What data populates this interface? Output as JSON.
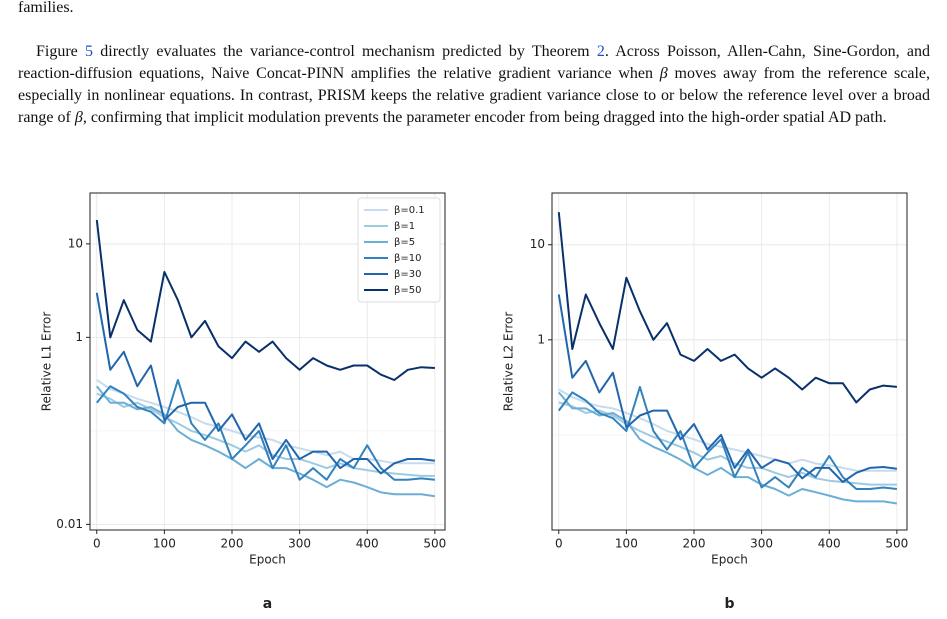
{
  "previous_text": "families.",
  "paragraph": [
    "Figure ",
    "5",
    " directly evaluates the variance-control mechanism predicted by Theorem ",
    "2",
    ". Across Poisson, Allen-Cahn, Sine-Gordon, and reaction-diffusion equations, Naive Concat-PINN amplifies the relative gradient variance when ",
    "β",
    " moves away from the reference scale, especially in nonlinear equations. In contrast, PRISM keeps the relative gradient variance close to or below the reference level over a broad range of ",
    "β",
    ", confirming that implicit modulation prevents the parameter encoder from being dragged into the high-order spatial AD path."
  ],
  "chart_data": [
    {
      "type": "line",
      "panel_label": "a",
      "xlabel": "Epoch",
      "ylabel": "Relative L1 Error",
      "log_y": true,
      "grid": true,
      "legend": "upper right",
      "xlim": [
        -10,
        515
      ],
      "xticks": [
        0,
        100,
        200,
        300,
        400,
        500
      ],
      "ylim": [
        0.0087,
        35
      ],
      "yticks": [
        0.01,
        1,
        10
      ],
      "x": [
        0,
        20,
        40,
        60,
        80,
        100,
        120,
        140,
        160,
        180,
        200,
        220,
        240,
        260,
        280,
        300,
        320,
        340,
        360,
        380,
        400,
        420,
        440,
        460,
        480,
        500
      ],
      "series": [
        {
          "name": "β=0.1",
          "color": "#c6dbef",
          "values": [
            0.35,
            0.28,
            0.25,
            0.22,
            0.2,
            0.18,
            0.16,
            0.14,
            0.12,
            0.11,
            0.1,
            0.09,
            0.085,
            0.08,
            0.07,
            0.065,
            0.06,
            0.055,
            0.06,
            0.05,
            0.05,
            0.048,
            0.045,
            0.045,
            0.045,
            0.045
          ]
        },
        {
          "name": "β=1",
          "color": "#9ecae1",
          "values": [
            0.25,
            0.22,
            0.18,
            0.2,
            0.17,
            0.14,
            0.12,
            0.1,
            0.09,
            0.08,
            0.07,
            0.06,
            0.07,
            0.055,
            0.05,
            0.05,
            0.045,
            0.04,
            0.045,
            0.04,
            0.038,
            0.036,
            0.035,
            0.034,
            0.033,
            0.033
          ]
        },
        {
          "name": "β=5",
          "color": "#6baed6",
          "values": [
            0.3,
            0.2,
            0.2,
            0.17,
            0.18,
            0.15,
            0.1,
            0.08,
            0.07,
            0.06,
            0.05,
            0.04,
            0.05,
            0.04,
            0.04,
            0.035,
            0.03,
            0.025,
            0.03,
            0.028,
            0.025,
            0.022,
            0.021,
            0.021,
            0.021,
            0.02
          ]
        },
        {
          "name": "β=10",
          "color": "#3182bd",
          "values": [
            0.2,
            0.3,
            0.25,
            0.18,
            0.16,
            0.12,
            0.35,
            0.12,
            0.08,
            0.12,
            0.05,
            0.07,
            0.1,
            0.04,
            0.07,
            0.03,
            0.04,
            0.03,
            0.05,
            0.04,
            0.07,
            0.04,
            0.03,
            0.03,
            0.031,
            0.03
          ]
        },
        {
          "name": "β=30",
          "color": "#2166ac",
          "values": [
            3,
            0.45,
            0.7,
            0.3,
            0.5,
            0.13,
            0.18,
            0.2,
            0.2,
            0.1,
            0.15,
            0.08,
            0.12,
            0.05,
            0.08,
            0.05,
            0.06,
            0.06,
            0.04,
            0.05,
            0.05,
            0.035,
            0.045,
            0.05,
            0.05,
            0.048
          ]
        },
        {
          "name": "β=50",
          "color": "#08306b",
          "values": [
            18,
            1.0,
            2.5,
            1.2,
            0.9,
            5,
            2.5,
            1.0,
            1.5,
            0.8,
            0.6,
            0.9,
            0.7,
            0.9,
            0.6,
            0.45,
            0.6,
            0.5,
            0.45,
            0.5,
            0.5,
            0.4,
            0.35,
            0.45,
            0.48,
            0.47
          ]
        }
      ]
    },
    {
      "type": "line",
      "panel_label": "b",
      "xlabel": "Epoch",
      "ylabel": "Relative L2 Error",
      "log_y": true,
      "grid": true,
      "xlim": [
        -10,
        515
      ],
      "xticks": [
        0,
        100,
        200,
        300,
        400,
        500
      ],
      "ylim": [
        0.01,
        35
      ],
      "yticks": [
        1,
        10
      ],
      "x": [
        0,
        20,
        40,
        60,
        80,
        100,
        120,
        140,
        160,
        180,
        200,
        220,
        240,
        260,
        280,
        300,
        320,
        340,
        360,
        380,
        400,
        420,
        440,
        460,
        480,
        500
      ],
      "series": [
        {
          "color": "#c6dbef",
          "values": [
            0.3,
            0.25,
            0.22,
            0.2,
            0.19,
            0.17,
            0.15,
            0.13,
            0.11,
            0.1,
            0.09,
            0.08,
            0.075,
            0.07,
            0.065,
            0.06,
            0.055,
            0.05,
            0.055,
            0.05,
            0.048,
            0.045,
            0.042,
            0.042,
            0.042,
            0.042
          ]
        },
        {
          "color": "#9ecae1",
          "values": [
            0.22,
            0.2,
            0.17,
            0.18,
            0.16,
            0.13,
            0.11,
            0.095,
            0.085,
            0.075,
            0.065,
            0.055,
            0.06,
            0.05,
            0.045,
            0.045,
            0.04,
            0.036,
            0.04,
            0.035,
            0.033,
            0.032,
            0.031,
            0.03,
            0.03,
            0.03
          ]
        },
        {
          "color": "#6baed6",
          "values": [
            0.28,
            0.19,
            0.19,
            0.16,
            0.17,
            0.14,
            0.09,
            0.075,
            0.065,
            0.055,
            0.045,
            0.038,
            0.045,
            0.036,
            0.036,
            0.03,
            0.027,
            0.023,
            0.027,
            0.025,
            0.023,
            0.021,
            0.02,
            0.02,
            0.02,
            0.019
          ]
        },
        {
          "color": "#3182bd",
          "values": [
            0.18,
            0.28,
            0.23,
            0.17,
            0.15,
            0.11,
            0.32,
            0.11,
            0.07,
            0.11,
            0.045,
            0.065,
            0.09,
            0.036,
            0.065,
            0.028,
            0.036,
            0.028,
            0.045,
            0.036,
            0.06,
            0.036,
            0.027,
            0.027,
            0.028,
            0.027
          ]
        },
        {
          "color": "#2166ac",
          "values": [
            3,
            0.4,
            0.6,
            0.28,
            0.45,
            0.12,
            0.16,
            0.18,
            0.18,
            0.09,
            0.13,
            0.07,
            0.1,
            0.045,
            0.07,
            0.045,
            0.055,
            0.05,
            0.035,
            0.045,
            0.045,
            0.032,
            0.04,
            0.045,
            0.046,
            0.044
          ]
        },
        {
          "color": "#08306b",
          "values": [
            22,
            0.8,
            3,
            1.5,
            0.8,
            4.5,
            2,
            1.0,
            1.5,
            0.7,
            0.6,
            0.8,
            0.6,
            0.7,
            0.5,
            0.4,
            0.5,
            0.4,
            0.3,
            0.4,
            0.35,
            0.35,
            0.22,
            0.3,
            0.33,
            0.32
          ]
        }
      ]
    }
  ]
}
